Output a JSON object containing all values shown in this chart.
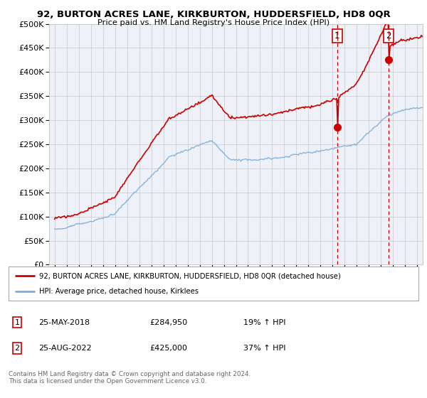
{
  "title": "92, BURTON ACRES LANE, KIRKBURTON, HUDDERSFIELD, HD8 0QR",
  "subtitle": "Price paid vs. HM Land Registry's House Price Index (HPI)",
  "legend_line1": "92, BURTON ACRES LANE, KIRKBURTON, HUDDERSFIELD, HD8 0QR (detached house)",
  "legend_line2": "HPI: Average price, detached house, Kirklees",
  "footnote": "Contains HM Land Registry data © Crown copyright and database right 2024.\nThis data is licensed under the Open Government Licence v3.0.",
  "sale1_date": "25-MAY-2018",
  "sale1_price": "£284,950",
  "sale1_hpi": "19% ↑ HPI",
  "sale1_year": 2018.38,
  "sale1_value": 284950,
  "sale2_date": "25-AUG-2022",
  "sale2_price": "£425,000",
  "sale2_hpi": "37% ↑ HPI",
  "sale2_year": 2022.63,
  "sale2_value": 425000,
  "ylim": [
    0,
    500000
  ],
  "yticks": [
    0,
    50000,
    100000,
    150000,
    200000,
    250000,
    300000,
    350000,
    400000,
    450000,
    500000
  ],
  "background_color": "#ffffff",
  "plot_bg_color": "#eef2f8",
  "grid_color": "#c8c8c8",
  "red_color": "#cc0000",
  "blue_color": "#7aaddb",
  "vline_color": "#cc0000"
}
